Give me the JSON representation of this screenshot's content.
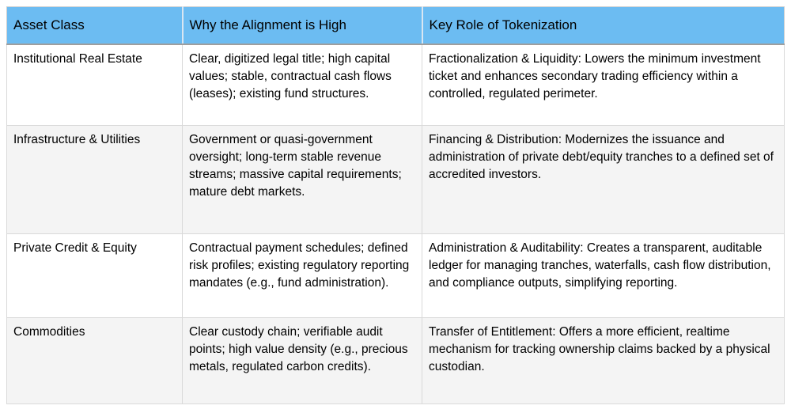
{
  "table": {
    "headers": [
      "Asset Class",
      "Why the Alignment is High",
      "Key Role of Tokenization"
    ],
    "rows": [
      {
        "asset_class": "Institutional Real Estate",
        "alignment_reason": "Clear, digitized legal title; high capital values; stable, contractual cash flows (leases); existing fund structures.",
        "tokenization_role": "Fractionalization & Liquidity: Lowers the minimum investment ticket and enhances secondary trading efficiency within a controlled, regulated perimeter."
      },
      {
        "asset_class": "Infrastructure & Utilities",
        "alignment_reason": "Government or quasi-government oversight; long-term stable revenue streams; massive capital requirements; mature debt markets.",
        "tokenization_role": "Financing & Distribution: Modernizes the issuance and administration of private debt/equity tranches to a defined set of accredited investors."
      },
      {
        "asset_class": "Private Credit & Equity",
        "alignment_reason": "Contractual payment schedules; defined risk profiles; existing regulatory reporting mandates (e.g., fund administration).",
        "tokenization_role": "Administration & Auditability: Creates a transparent, auditable ledger for managing tranches, waterfalls, cash flow distribution, and compliance outputs, simplifying reporting."
      },
      {
        "asset_class": "Commodities",
        "alignment_reason": "Clear custody chain; verifiable audit points; high value density (e.g., precious metals, regulated carbon credits).",
        "tokenization_role": "Transfer of Entitlement: Offers a more efficient, realtime mechanism for tracking ownership claims backed by a physical custodian."
      }
    ],
    "colors": {
      "header_background": "#6cbcf2",
      "alternate_row_background": "#f4f4f4",
      "grid_line": "#d9d9d9",
      "header_underline": "#9e9e9e",
      "text": "#000000"
    }
  }
}
